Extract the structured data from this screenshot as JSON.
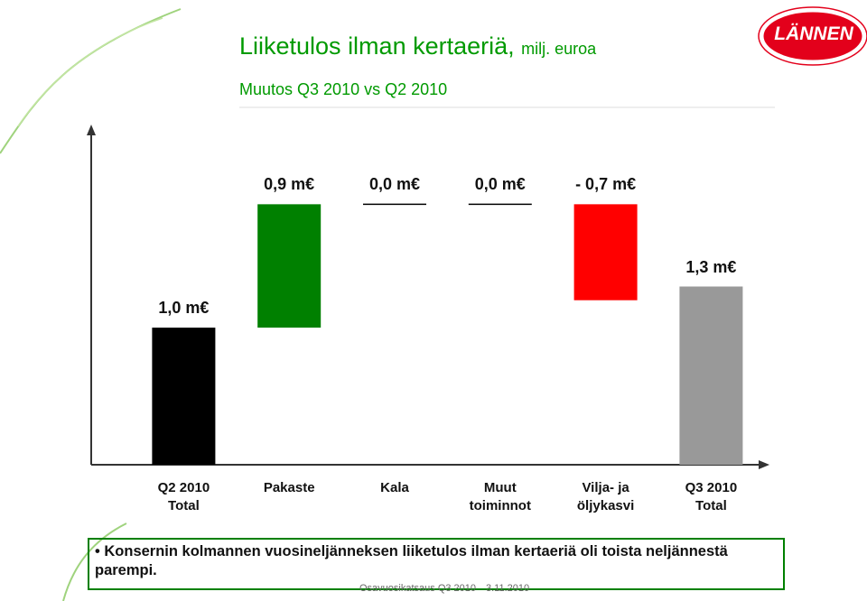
{
  "logo": "LÄNNEN",
  "chart_data": {
    "type": "waterfall",
    "title": "Liiketulos ilman kertaeriä,",
    "title_unit": "milj. euroa",
    "subtitle": "Muutos Q3 2010 vs Q2 2010",
    "categories": [
      "Q2 2010\nTotal",
      "Pakaste",
      "Kala",
      "Muut\ntoiminnot",
      "Vilja- ja\nöljykasvi",
      "Q3 2010\nTotal"
    ],
    "values": [
      1.0,
      0.9,
      0.0,
      0.0,
      -0.7,
      1.3
    ],
    "value_labels": [
      "1,0 m€",
      "0,9 m€",
      "0,0 m€",
      "0,0 m€",
      "- 0,7 m€",
      "1,3 m€"
    ],
    "colors": [
      "#000000",
      "#008000",
      "#000000",
      "#000000",
      "#ff0000",
      "#999999"
    ],
    "ylim": [
      0,
      2.6
    ]
  },
  "note": "Konsernin kolmannen vuosineljänneksen liiketulos ilman kertaeriä  oli toista neljännestä parempi.",
  "footer": {
    "left": "Osavuosikatsaus Q3 2010",
    "right": "3.11.2010"
  }
}
